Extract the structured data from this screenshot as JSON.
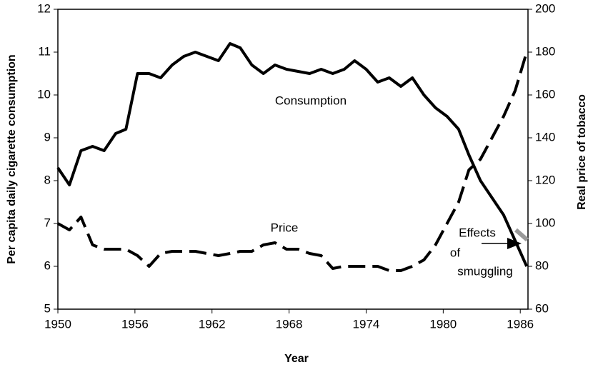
{
  "chart_data": {
    "type": "line",
    "xlabel": "Year",
    "ylabel": "Per capita daily cigarette consumption",
    "y2label": "Real price of tobacco",
    "annotation": [
      "Effects",
      "of",
      "smuggling"
    ],
    "x": [
      1950.0,
      1950.9,
      1951.8,
      1952.7,
      1953.6,
      1954.5,
      1955.3,
      1956.2,
      1957.1,
      1958.0,
      1958.9,
      1959.8,
      1960.7,
      1961.6,
      1962.5,
      1963.4,
      1964.2,
      1965.1,
      1966.0,
      1966.9,
      1967.8,
      1968.7,
      1969.6,
      1970.5,
      1971.4,
      1972.3,
      1973.1,
      1974.0,
      1974.9,
      1975.8,
      1976.7,
      1977.6,
      1978.5,
      1979.4,
      1980.3,
      1981.2,
      1982.0,
      1982.9,
      1983.8,
      1984.7,
      1985.6,
      1986.5
    ],
    "series": [
      {
        "name": "Consumption",
        "color": "#000000",
        "dash": false,
        "values": [
          8.3,
          7.9,
          8.7,
          8.8,
          8.7,
          9.1,
          9.2,
          10.5,
          10.5,
          10.4,
          10.7,
          10.9,
          11.0,
          10.9,
          10.8,
          11.2,
          11.1,
          10.7,
          10.5,
          10.7,
          10.6,
          10.55,
          10.5,
          10.6,
          10.5,
          10.6,
          10.8,
          10.6,
          10.3,
          10.4,
          10.2,
          10.4,
          10.0,
          9.7,
          9.5,
          9.2,
          8.6,
          8.0,
          7.6,
          7.2,
          6.6,
          6.0
        ]
      },
      {
        "name": "Price",
        "color": "#000000",
        "dash": true,
        "axis": "y2",
        "values": [
          100,
          97,
          103,
          90,
          88,
          88,
          88,
          85,
          80,
          86,
          87,
          87,
          87,
          86,
          85,
          86,
          87,
          87,
          90,
          91,
          88,
          88,
          86,
          85,
          79,
          80,
          80,
          80,
          80,
          78,
          78,
          80,
          83,
          90,
          100,
          110,
          125,
          130,
          140,
          150,
          162,
          180
        ]
      }
    ],
    "xlim": [
      1950,
      1986.6
    ],
    "xticks": [
      1950,
      1956,
      1962,
      1968,
      1974,
      1980,
      1986
    ],
    "ylim": [
      5,
      12
    ],
    "yticks": [
      5,
      6,
      7,
      8,
      9,
      10,
      11,
      12
    ],
    "y2lim": [
      60,
      200
    ],
    "y2ticks": [
      60,
      80,
      100,
      120,
      140,
      160,
      180,
      200
    ],
    "grid": false
  }
}
